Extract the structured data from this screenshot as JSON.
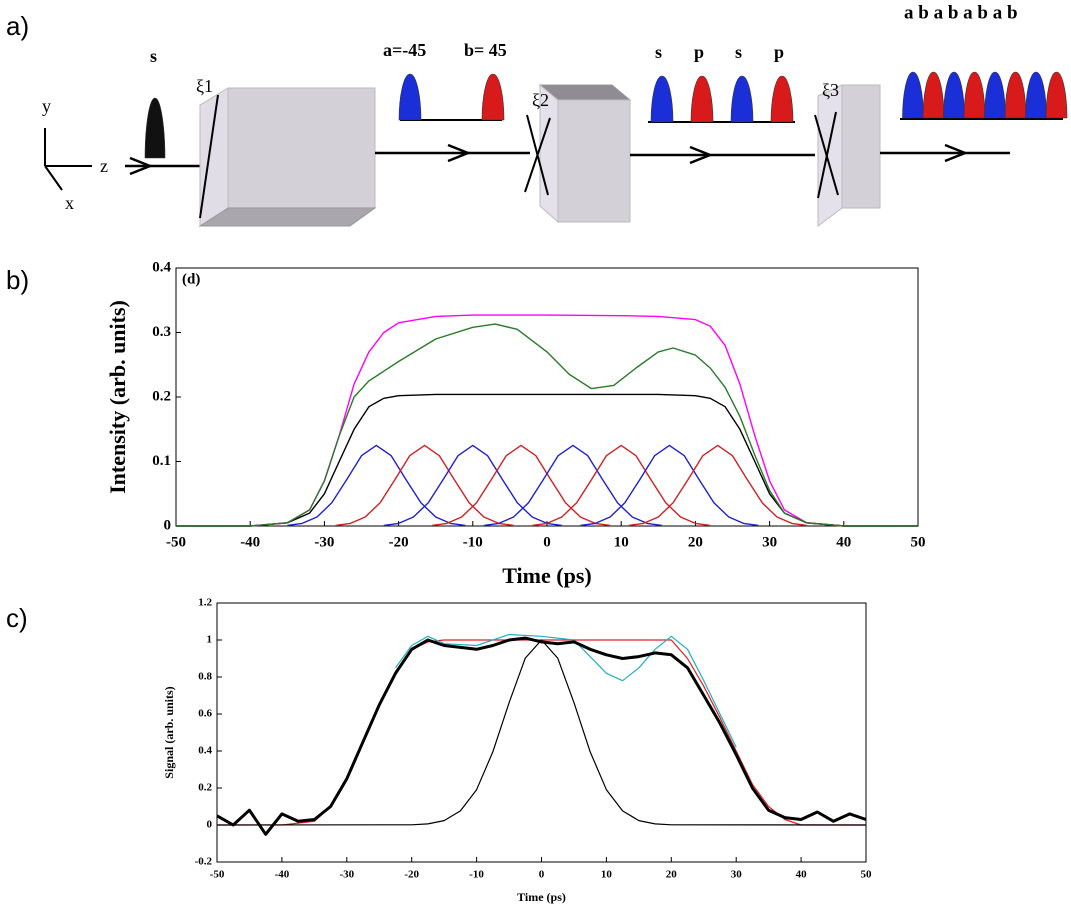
{
  "panel_labels": [
    "a)",
    "b)",
    "c)"
  ],
  "diagram": {
    "axes": {
      "y": "y",
      "z": "z",
      "x": "x"
    },
    "input_label": "s",
    "plate1": "ξ1",
    "pair_a": "a=-45",
    "pair_b": "b= 45",
    "plate2": "ξ2",
    "stage2_labels": [
      "s",
      "p",
      "s",
      "p"
    ],
    "plate3": "ξ3",
    "output_labels": "a b a b a b a b"
  },
  "chart_data": [
    {
      "type": "line",
      "annotation": "(d)",
      "x_label": "Time (ps)",
      "y_label": "Intensity (arb. units)",
      "xlim": [
        -50,
        50
      ],
      "xticks": [
        -50,
        -40,
        -30,
        -20,
        -10,
        0,
        10,
        20,
        30,
        40,
        50
      ],
      "ylim": [
        0,
        0.4
      ],
      "yticks": [
        0,
        0.1,
        0.2,
        0.3,
        0.4
      ],
      "series": [
        {
          "color": "#2020d0",
          "x": [
            -35,
            -33,
            -31,
            -29,
            -27,
            -25,
            -23,
            -21,
            -19,
            -17,
            -15,
            -13,
            -11
          ],
          "values": [
            0.001,
            0.004,
            0.014,
            0.036,
            0.072,
            0.109,
            0.125,
            0.109,
            0.072,
            0.036,
            0.014,
            0.004,
            0.001
          ]
        },
        {
          "color": "#d02020",
          "x": [
            -28.5,
            -26.5,
            -24.5,
            -22.5,
            -20.5,
            -18.5,
            -16.5,
            -14.5,
            -12.5,
            -10.5,
            -8.5,
            -6.5,
            -4.5
          ],
          "values": [
            0.001,
            0.004,
            0.014,
            0.036,
            0.072,
            0.109,
            0.125,
            0.109,
            0.072,
            0.036,
            0.014,
            0.004,
            0.001
          ]
        },
        {
          "color": "#2020d0",
          "x": [
            -22,
            -20,
            -18,
            -16,
            -14,
            -12,
            -10,
            -8,
            -6,
            -4,
            -2,
            0,
            2
          ],
          "values": [
            0.001,
            0.004,
            0.014,
            0.036,
            0.072,
            0.109,
            0.125,
            0.109,
            0.072,
            0.036,
            0.014,
            0.004,
            0.001
          ]
        },
        {
          "color": "#d02020",
          "x": [
            -15.5,
            -13.5,
            -11.5,
            -9.5,
            -7.5,
            -5.5,
            -3.5,
            -1.5,
            0.5,
            2.5,
            4.5,
            6.5,
            8.5
          ],
          "values": [
            0.001,
            0.004,
            0.014,
            0.036,
            0.072,
            0.109,
            0.125,
            0.109,
            0.072,
            0.036,
            0.014,
            0.004,
            0.001
          ]
        },
        {
          "color": "#2020d0",
          "x": [
            -8.5,
            -6.5,
            -4.5,
            -2.5,
            -0.5,
            1.5,
            3.5,
            5.5,
            7.5,
            9.5,
            11.5,
            13.5,
            15.5
          ],
          "values": [
            0.001,
            0.004,
            0.014,
            0.036,
            0.072,
            0.109,
            0.125,
            0.109,
            0.072,
            0.036,
            0.014,
            0.004,
            0.001
          ]
        },
        {
          "color": "#d02020",
          "x": [
            -2,
            0,
            2,
            4,
            6,
            8,
            10,
            12,
            14,
            16,
            18,
            20,
            22
          ],
          "values": [
            0.001,
            0.004,
            0.014,
            0.036,
            0.072,
            0.109,
            0.125,
            0.109,
            0.072,
            0.036,
            0.014,
            0.004,
            0.001
          ]
        },
        {
          "color": "#2020d0",
          "x": [
            4.5,
            6.5,
            8.5,
            10.5,
            12.5,
            14.5,
            16.5,
            18.5,
            20.5,
            22.5,
            24.5,
            26.5,
            28.5
          ],
          "values": [
            0.001,
            0.004,
            0.014,
            0.036,
            0.072,
            0.109,
            0.125,
            0.109,
            0.072,
            0.036,
            0.014,
            0.004,
            0.001
          ]
        },
        {
          "color": "#d02020",
          "x": [
            11,
            13,
            15,
            17,
            19,
            21,
            23,
            25,
            27,
            29,
            31,
            33,
            35
          ],
          "values": [
            0.001,
            0.004,
            0.014,
            0.036,
            0.072,
            0.109,
            0.125,
            0.109,
            0.072,
            0.036,
            0.014,
            0.004,
            0.001
          ]
        },
        {
          "color": "#ff00ff",
          "x": [
            -50,
            -40,
            -35,
            -32,
            -30,
            -28,
            -26,
            -24,
            -22,
            -20,
            -15,
            -10,
            0,
            10,
            15,
            20,
            22,
            24,
            26,
            28,
            30,
            32,
            35,
            40,
            50
          ],
          "values": [
            0,
            0,
            0.005,
            0.025,
            0.07,
            0.14,
            0.22,
            0.27,
            0.3,
            0.315,
            0.325,
            0.327,
            0.327,
            0.326,
            0.325,
            0.32,
            0.31,
            0.28,
            0.22,
            0.14,
            0.07,
            0.025,
            0.005,
            0,
            0
          ]
        },
        {
          "color": "#000000",
          "x": [
            -50,
            -40,
            -35,
            -32,
            -30,
            -28,
            -26,
            -24,
            -22,
            -20,
            -15,
            -10,
            0,
            10,
            15,
            20,
            22,
            24,
            26,
            28,
            30,
            32,
            35,
            40,
            50
          ],
          "values": [
            0,
            0,
            0.005,
            0.02,
            0.05,
            0.1,
            0.15,
            0.185,
            0.198,
            0.202,
            0.204,
            0.204,
            0.204,
            0.204,
            0.204,
            0.202,
            0.198,
            0.185,
            0.15,
            0.1,
            0.05,
            0.02,
            0.005,
            0,
            0
          ]
        },
        {
          "color": "#2a7a2a",
          "x": [
            -50,
            -40,
            -35,
            -32,
            -30,
            -28,
            -26,
            -24,
            -22,
            -20,
            -15,
            -10,
            -7,
            -4,
            0,
            3,
            6,
            9,
            12,
            15,
            17,
            20,
            22,
            24,
            26,
            28,
            30,
            32,
            35,
            40,
            50
          ],
          "values": [
            0,
            0,
            0.005,
            0.025,
            0.07,
            0.14,
            0.2,
            0.225,
            0.24,
            0.255,
            0.29,
            0.308,
            0.313,
            0.305,
            0.27,
            0.235,
            0.213,
            0.218,
            0.245,
            0.27,
            0.276,
            0.265,
            0.245,
            0.215,
            0.17,
            0.11,
            0.055,
            0.02,
            0.005,
            0,
            0
          ]
        }
      ]
    },
    {
      "type": "line",
      "x_label": "Time (ps)",
      "y_label": "Signal (arb. units)",
      "xlim": [
        -50,
        50
      ],
      "xticks": [
        -50,
        -40,
        -30,
        -20,
        -10,
        0,
        10,
        20,
        30,
        40,
        50
      ],
      "ylim": [
        -0.2,
        1.2
      ],
      "yticks": [
        -0.2,
        0,
        0.2,
        0.4,
        0.6,
        0.8,
        1,
        1.2
      ],
      "series": [
        {
          "color": "#e02020",
          "x": [
            -50,
            -40,
            -35,
            -32.5,
            -30,
            -27.5,
            -25,
            -22.5,
            -20,
            -17.5,
            -15,
            0,
            15,
            17.5,
            20,
            22.5,
            25,
            27.5,
            30,
            32.5,
            35,
            37.5,
            40,
            50
          ],
          "values": [
            0,
            0,
            0.02,
            0.1,
            0.25,
            0.45,
            0.65,
            0.83,
            0.95,
            0.99,
            1,
            1,
            1,
            1,
            1,
            0.9,
            0.75,
            0.58,
            0.4,
            0.22,
            0.1,
            0.03,
            0,
            0
          ]
        },
        {
          "color": "#20b0c0",
          "x": [
            -22.5,
            -20,
            -17.5,
            -15,
            -10,
            -5,
            0,
            5,
            10,
            12.5,
            15,
            17.5,
            20,
            22.5,
            25,
            27.5,
            30
          ],
          "values": [
            0.85,
            0.97,
            1.02,
            0.98,
            0.97,
            1.03,
            1.02,
            1,
            0.82,
            0.78,
            0.85,
            0.95,
            1.02,
            0.95,
            0.78,
            0.6,
            0.42
          ]
        },
        {
          "color": "#000000",
          "width": 3,
          "x": [
            -50,
            -47.5,
            -45,
            -42.5,
            -40,
            -37.5,
            -35,
            -32.5,
            -30,
            -27.5,
            -25,
            -22.5,
            -20,
            -17.5,
            -15,
            -12.5,
            -10,
            -7.5,
            -5,
            -2.5,
            0,
            2.5,
            5,
            7.5,
            10,
            12.5,
            15,
            17.5,
            20,
            22.5,
            25,
            27.5,
            30,
            32.5,
            35,
            37.5,
            40,
            42.5,
            45,
            47.5,
            50
          ],
          "values": [
            0.05,
            0,
            0.08,
            -0.05,
            0.06,
            0.02,
            0.03,
            0.1,
            0.25,
            0.45,
            0.65,
            0.82,
            0.95,
            1,
            0.97,
            0.96,
            0.95,
            0.97,
            1,
            1.01,
            0.99,
            0.98,
            0.99,
            0.95,
            0.92,
            0.9,
            0.91,
            0.93,
            0.92,
            0.85,
            0.7,
            0.55,
            0.38,
            0.2,
            0.08,
            0.04,
            0.03,
            0.07,
            0.02,
            0.06,
            0.03
          ]
        },
        {
          "color": "#000000",
          "x": [
            -50,
            -20,
            -17.5,
            -15,
            -12.5,
            -10,
            -7.5,
            -5,
            -2.5,
            0,
            2.5,
            5,
            7.5,
            10,
            12.5,
            15,
            17.5,
            20,
            50
          ],
          "values": [
            0,
            0.001,
            0.006,
            0.024,
            0.076,
            0.191,
            0.395,
            0.661,
            0.902,
            1,
            0.902,
            0.661,
            0.395,
            0.191,
            0.076,
            0.024,
            0.006,
            0.001,
            0
          ]
        }
      ]
    }
  ]
}
